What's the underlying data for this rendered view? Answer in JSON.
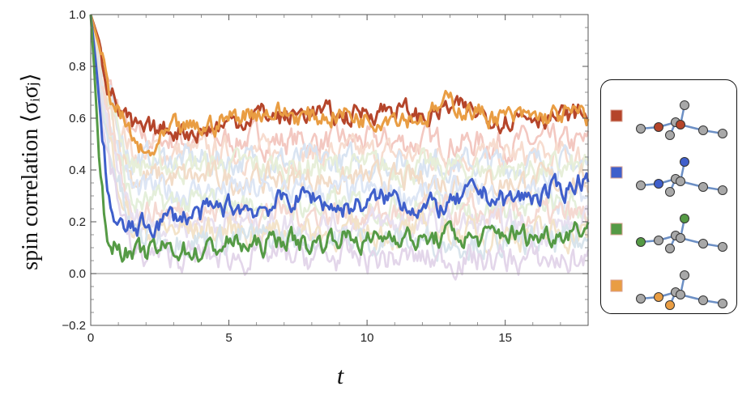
{
  "chart_data": {
    "type": "line",
    "title": "",
    "xlabel": "t",
    "ylabel": "spin correlation ⟨σᵢσⱼ⟩",
    "xlim": [
      0,
      18
    ],
    "ylim": [
      -0.2,
      1.0
    ],
    "x_ticks": [
      "0",
      "5",
      "10",
      "15"
    ],
    "y_ticks": [
      "−0.2",
      "0.0",
      "0.2",
      "0.4",
      "0.6",
      "0.8",
      "1.0"
    ],
    "grid": false,
    "legend_placement": "right",
    "reference_line_y": 0.0,
    "highlighted_series": [
      {
        "color": "#b5452a",
        "points": [
          [
            0,
            1.0
          ],
          [
            0.3,
            0.9
          ],
          [
            0.6,
            0.75
          ],
          [
            1,
            0.64
          ],
          [
            1.5,
            0.56
          ],
          [
            2,
            0.54
          ],
          [
            3,
            0.56
          ],
          [
            4,
            0.55
          ],
          [
            5,
            0.58
          ],
          [
            6,
            0.62
          ],
          [
            7,
            0.6
          ],
          [
            8,
            0.63
          ],
          [
            9,
            0.6
          ],
          [
            10,
            0.63
          ],
          [
            11,
            0.64
          ],
          [
            12,
            0.6
          ],
          [
            13,
            0.64
          ],
          [
            14,
            0.62
          ],
          [
            15,
            0.6
          ],
          [
            16,
            0.62
          ],
          [
            17,
            0.6
          ],
          [
            18,
            0.62
          ]
        ]
      },
      {
        "color": "#e99d43",
        "points": [
          [
            0,
            1.0
          ],
          [
            0.3,
            0.88
          ],
          [
            0.6,
            0.72
          ],
          [
            1,
            0.62
          ],
          [
            1.5,
            0.52
          ],
          [
            2,
            0.44
          ],
          [
            2.5,
            0.5
          ],
          [
            3,
            0.55
          ],
          [
            4,
            0.56
          ],
          [
            5,
            0.6
          ],
          [
            6,
            0.63
          ],
          [
            7,
            0.62
          ],
          [
            8,
            0.6
          ],
          [
            9,
            0.62
          ],
          [
            10,
            0.6
          ],
          [
            11,
            0.62
          ],
          [
            12,
            0.6
          ],
          [
            13,
            0.66
          ],
          [
            14,
            0.62
          ],
          [
            15,
            0.6
          ],
          [
            16,
            0.6
          ],
          [
            17,
            0.61
          ],
          [
            18,
            0.61
          ]
        ]
      },
      {
        "color": "#3f5fcb",
        "points": [
          [
            0,
            1.0
          ],
          [
            0.2,
            0.8
          ],
          [
            0.4,
            0.55
          ],
          [
            0.6,
            0.35
          ],
          [
            0.8,
            0.22
          ],
          [
            1,
            0.17
          ],
          [
            1.5,
            0.17
          ],
          [
            2,
            0.18
          ],
          [
            3,
            0.22
          ],
          [
            4,
            0.23
          ],
          [
            5,
            0.26
          ],
          [
            6,
            0.25
          ],
          [
            7,
            0.28
          ],
          [
            8,
            0.3
          ],
          [
            9,
            0.25
          ],
          [
            10,
            0.27
          ],
          [
            11,
            0.3
          ],
          [
            12,
            0.25
          ],
          [
            13,
            0.26
          ],
          [
            14,
            0.32
          ],
          [
            15,
            0.28
          ],
          [
            16,
            0.3
          ],
          [
            17,
            0.32
          ],
          [
            18,
            0.38
          ]
        ]
      },
      {
        "color": "#559a45",
        "points": [
          [
            0,
            1.0
          ],
          [
            0.15,
            0.75
          ],
          [
            0.3,
            0.45
          ],
          [
            0.5,
            0.2
          ],
          [
            0.7,
            0.1
          ],
          [
            1,
            0.12
          ],
          [
            1.5,
            0.06
          ],
          [
            2,
            0.08
          ],
          [
            3,
            0.1
          ],
          [
            4,
            0.08
          ],
          [
            5,
            0.12
          ],
          [
            6,
            0.1
          ],
          [
            7,
            0.14
          ],
          [
            8,
            0.11
          ],
          [
            9,
            0.15
          ],
          [
            10,
            0.12
          ],
          [
            11,
            0.16
          ],
          [
            12,
            0.12
          ],
          [
            13,
            0.15
          ],
          [
            14,
            0.13
          ],
          [
            15,
            0.16
          ],
          [
            16,
            0.14
          ],
          [
            17,
            0.16
          ],
          [
            18,
            0.19
          ]
        ]
      }
    ],
    "background_series": [
      {
        "color": "#f3c8c1",
        "level": 0.5
      },
      {
        "color": "#f7dccf",
        "level": 0.45
      },
      {
        "color": "#d9e4f2",
        "level": 0.42
      },
      {
        "color": "#e7efd9",
        "level": 0.4
      },
      {
        "color": "#f2dcc8",
        "level": 0.35
      },
      {
        "color": "#dde6f5",
        "level": 0.3
      },
      {
        "color": "#e4efda",
        "level": 0.25
      },
      {
        "color": "#f5d9d2",
        "level": 0.22
      },
      {
        "color": "#e8e0f0",
        "level": 0.18
      },
      {
        "color": "#f3e3c9",
        "level": 0.15
      },
      {
        "color": "#d8e4ec",
        "level": 0.12
      },
      {
        "color": "#e3d6ea",
        "level": 0.05
      }
    ],
    "legend": [
      {
        "color": "#b5452a",
        "node_a": "hub-left",
        "node_b": "hub-right"
      },
      {
        "color": "#3f5fcb",
        "node_a": "hub-left",
        "node_b": "top"
      },
      {
        "color": "#559a45",
        "node_a": "left-end",
        "node_b": "top"
      },
      {
        "color": "#e99d43",
        "node_a": "hub-left",
        "node_b": "hub-bottom"
      }
    ]
  }
}
